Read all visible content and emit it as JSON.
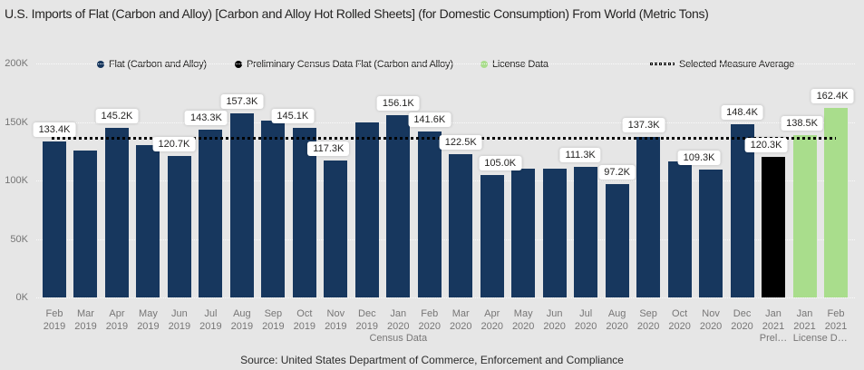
{
  "source_note": "Source: United States Department of Commerce, Enforcement and Compliance",
  "colors": {
    "page_bg": "#e6e6e6",
    "census": "#17375e",
    "preliminary": "#000000",
    "license": "#a9dd8c",
    "average_line": "#000000",
    "axis_text": "#757575",
    "x_axis_text": "#777676",
    "text": "#252423",
    "gridline": "#fafafa",
    "callout_bg": "#ffffff"
  },
  "chart_data": {
    "type": "bar",
    "title": "U.S. Imports of Flat (Carbon and Alloy) [Carbon and Alloy Hot Rolled Sheets]  (for Domestic Consumption) From World  (Metric Tons)",
    "unit": "Metric Tons",
    "xlabel": "",
    "ylabel": "",
    "ylim_k": [
      0,
      200
    ],
    "y_tick_labels_top_to_bottom": [
      "200K",
      "150K",
      "100K",
      "50K",
      "0K"
    ],
    "grid": true,
    "legend_position": "top",
    "legend": [
      {
        "label": "Flat (Carbon and Alloy)",
        "color": "#17375e",
        "marker": "dot"
      },
      {
        "label": "Preliminary Census Data Flat (Carbon and Alloy)",
        "color": "#000000",
        "marker": "dot"
      },
      {
        "label": "License Data",
        "color": "#a9dd8c",
        "marker": "dot"
      },
      {
        "label": "Selected Measure Average",
        "color": "#000000",
        "marker": "dotted-line"
      }
    ],
    "average_line": {
      "label": "Selected Measure Average",
      "approx_value_k": 136.8,
      "style": "dotted"
    },
    "x_group_labels": [
      {
        "text": "Census Data",
        "from": 0,
        "to": 22
      },
      {
        "text": "Prel…",
        "from": 23,
        "to": 23
      },
      {
        "text": "License D…",
        "from": 24,
        "to": 25
      }
    ],
    "bars": [
      {
        "month": "Feb",
        "year": "2019",
        "series": "census",
        "value_k": 133.4,
        "label": "133.4K"
      },
      {
        "month": "Mar",
        "year": "2019",
        "series": "census",
        "value_k": 125.4,
        "label": null
      },
      {
        "month": "Apr",
        "year": "2019",
        "series": "census",
        "value_k": 145.2,
        "label": "145.2K"
      },
      {
        "month": "May",
        "year": "2019",
        "series": "census",
        "value_k": 129.9,
        "label": null
      },
      {
        "month": "Jun",
        "year": "2019",
        "series": "census",
        "value_k": 120.7,
        "label": "120.7K",
        "label_dx": -6
      },
      {
        "month": "Jul",
        "year": "2019",
        "series": "census",
        "value_k": 143.3,
        "label": "143.3K",
        "label_dx": -5
      },
      {
        "month": "Aug",
        "year": "2019",
        "series": "census",
        "value_k": 157.3,
        "label": "157.3K"
      },
      {
        "month": "Sep",
        "year": "2019",
        "series": "census",
        "value_k": 151.1,
        "label": null
      },
      {
        "month": "Oct",
        "year": "2019",
        "series": "census",
        "value_k": 145.1,
        "label": "145.1K",
        "label_dx": -13
      },
      {
        "month": "Nov",
        "year": "2019",
        "series": "census",
        "value_k": 117.3,
        "label": "117.3K",
        "label_dx": -8
      },
      {
        "month": "Dec",
        "year": "2019",
        "series": "census",
        "value_k": 149.6,
        "label": null
      },
      {
        "month": "Jan",
        "year": "2020",
        "series": "census",
        "value_k": 156.1,
        "label": "156.1K"
      },
      {
        "month": "Feb",
        "year": "2020",
        "series": "census",
        "value_k": 141.6,
        "label": "141.6K"
      },
      {
        "month": "Mar",
        "year": "2020",
        "series": "census",
        "value_k": 122.5,
        "label": "122.5K"
      },
      {
        "month": "Apr",
        "year": "2020",
        "series": "census",
        "value_k": 105.0,
        "label": "105.0K",
        "label_dx": 9
      },
      {
        "month": "May",
        "year": "2020",
        "series": "census",
        "value_k": 110.0,
        "label": null
      },
      {
        "month": "Jun",
        "year": "2020",
        "series": "census",
        "value_k": 110.4,
        "label": null
      },
      {
        "month": "Jul",
        "year": "2020",
        "series": "census",
        "value_k": 111.3,
        "label": "111.3K",
        "label_dx": -6
      },
      {
        "month": "Aug",
        "year": "2020",
        "series": "census",
        "value_k": 97.2,
        "label": "97.2K"
      },
      {
        "month": "Sep",
        "year": "2020",
        "series": "census",
        "value_k": 137.3,
        "label": "137.3K",
        "label_dx": -5
      },
      {
        "month": "Oct",
        "year": "2020",
        "series": "census",
        "value_k": 116.4,
        "label": null
      },
      {
        "month": "Nov",
        "year": "2020",
        "series": "census",
        "value_k": 109.3,
        "label": "109.3K",
        "label_dx": -13
      },
      {
        "month": "Dec",
        "year": "2020",
        "series": "census",
        "value_k": 148.4,
        "label": "148.4K"
      },
      {
        "month": "Jan",
        "year": "2021",
        "series": "preliminary",
        "value_k": 120.3,
        "label": "120.3K",
        "label_dx": -8
      },
      {
        "month": "Jan",
        "year": "2021",
        "series": "license",
        "value_k": 138.5,
        "label": "138.5K",
        "label_dx": -3
      },
      {
        "month": "Feb",
        "year": "2021",
        "series": "license",
        "value_k": 162.4,
        "label": "162.4K",
        "label_dx": -4
      }
    ]
  }
}
